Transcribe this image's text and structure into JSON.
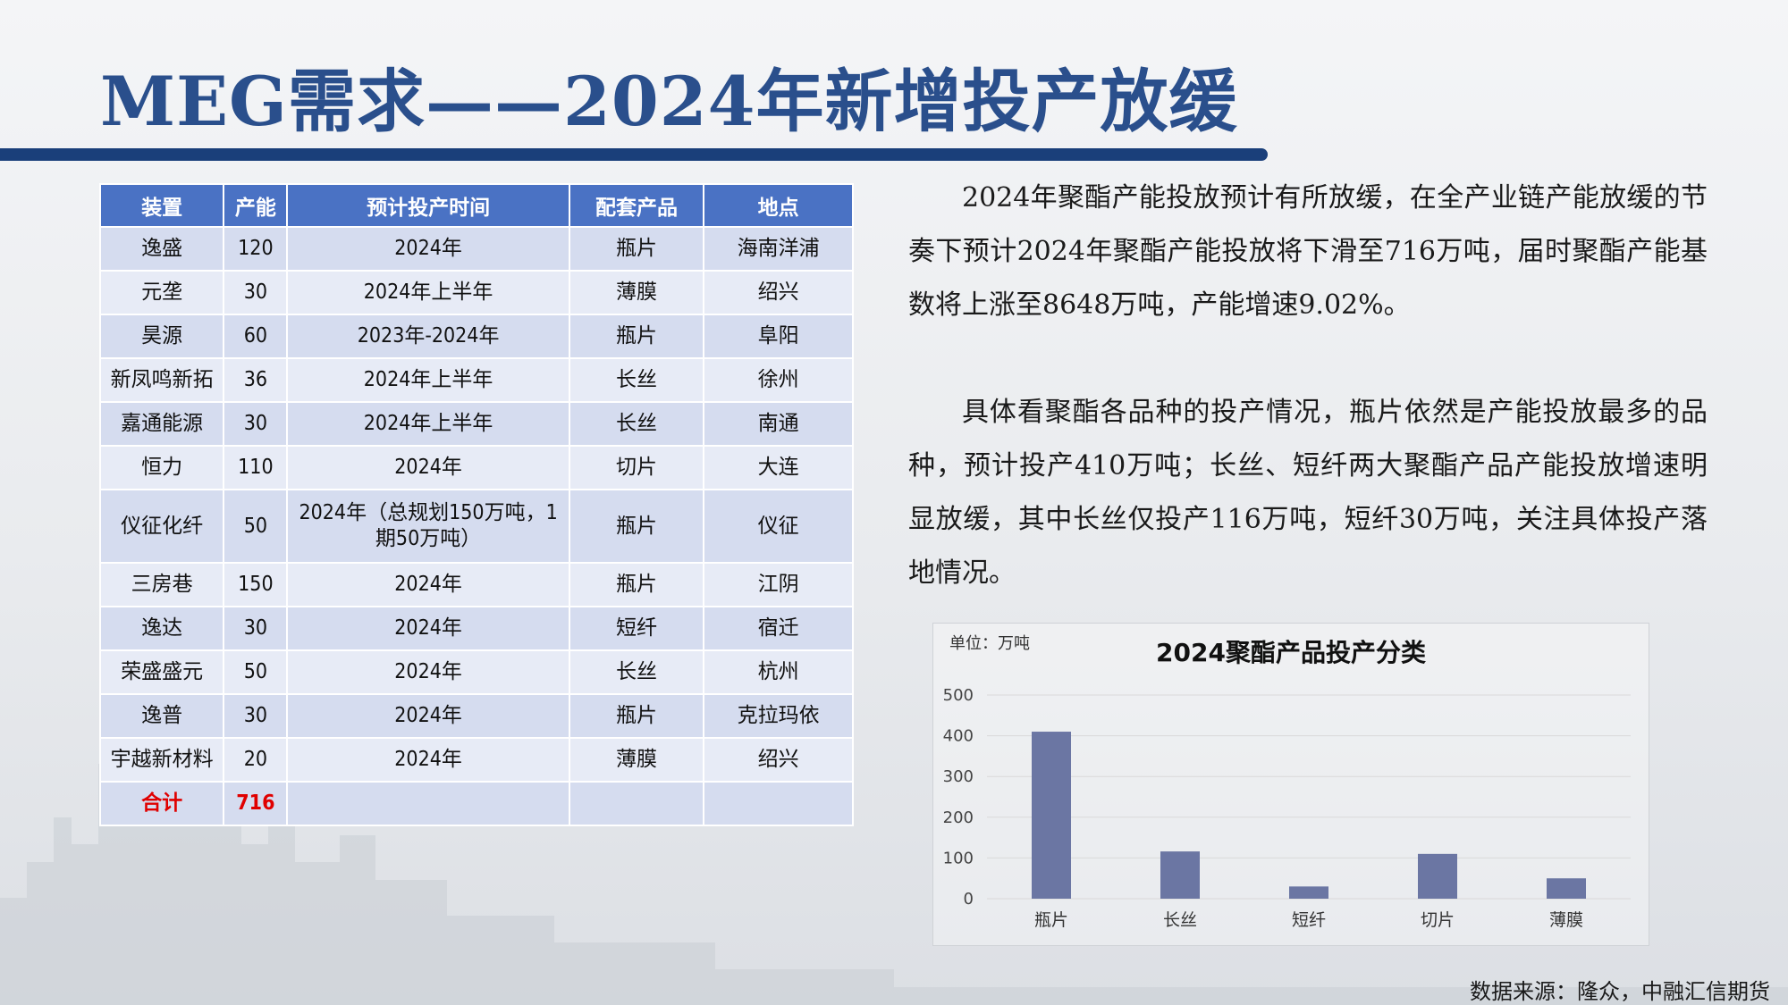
{
  "title": "MEG需求——2024年新增投产放缓",
  "table": {
    "headers": [
      "装置",
      "产能",
      "预计投产时间",
      "配套产品",
      "地点"
    ],
    "rows": [
      [
        "逸盛",
        "120",
        "2024年",
        "瓶片",
        "海南洋浦"
      ],
      [
        "元垄",
        "30",
        "2024年上半年",
        "薄膜",
        "绍兴"
      ],
      [
        "昊源",
        "60",
        "2023年-2024年",
        "瓶片",
        "阜阳"
      ],
      [
        "新凤鸣新拓",
        "36",
        "2024年上半年",
        "长丝",
        "徐州"
      ],
      [
        "嘉通能源",
        "30",
        "2024年上半年",
        "长丝",
        "南通"
      ],
      [
        "恒力",
        "110",
        "2024年",
        "切片",
        "大连"
      ],
      [
        "仪征化纤",
        "50",
        "2024年（总规划150万吨，1期50万吨）",
        "瓶片",
        "仪征"
      ],
      [
        "三房巷",
        "150",
        "2024年",
        "瓶片",
        "江阴"
      ],
      [
        "逸达",
        "30",
        "2024年",
        "短纤",
        "宿迁"
      ],
      [
        "荣盛盛元",
        "50",
        "2024年",
        "长丝",
        "杭州"
      ],
      [
        "逸普",
        "30",
        "2024年",
        "瓶片",
        "克拉玛依"
      ],
      [
        "宇越新材料",
        "20",
        "2024年",
        "薄膜",
        "绍兴"
      ]
    ],
    "total": [
      "合计",
      "716",
      "",
      "",
      ""
    ]
  },
  "paragraphs": [
    "2024年聚酯产能投放预计有所放缓，在全产业链产能放缓的节奏下预计2024年聚酯产能投放将下滑至716万吨，届时聚酯产能基数将上涨至8648万吨，产能增速9.02%。",
    "具体看聚酯各品种的投产情况，瓶片依然是产能投放最多的品种，预计投产410万吨；长丝、短纤两大聚酯产品产能投放增速明显放缓，其中长丝仅投产116万吨，短纤30万吨，关注具体投产落地情况。"
  ],
  "chart_data": {
    "type": "bar",
    "title": "2024聚酯产品投产分类",
    "unit_label": "单位：万吨",
    "categories": [
      "瓶片",
      "长丝",
      "短纤",
      "切片",
      "薄膜"
    ],
    "values": [
      410,
      116,
      30,
      110,
      50
    ],
    "ylim": [
      0,
      500
    ],
    "yticks": [
      0,
      100,
      200,
      300,
      400,
      500
    ],
    "grid": true,
    "bar_color": "#6b76a3",
    "grid_color": "#d9d9d9"
  },
  "source": "数据来源：隆众，中融汇信期货",
  "colors": {
    "title": "#2a4f8c",
    "title_bar": "#1a3f7a",
    "header_bg": "#4a72c4",
    "total_text": "#e00000"
  }
}
